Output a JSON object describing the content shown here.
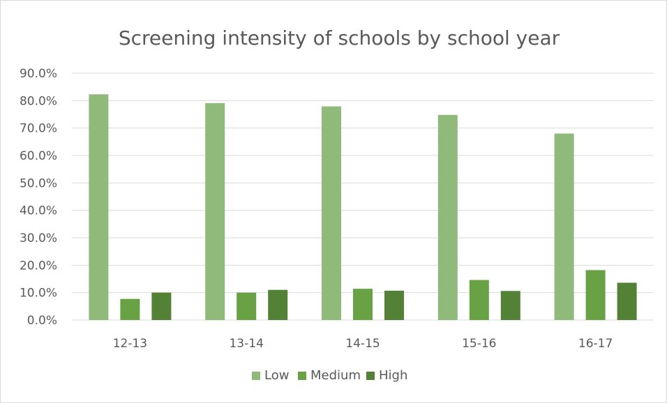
{
  "chart_data": {
    "type": "bar",
    "title": "Screening intensity of schools by school year",
    "xlabel": "",
    "ylabel": "",
    "categories": [
      "12-13",
      "13-14",
      "14-15",
      "15-16",
      "16-17"
    ],
    "series": [
      {
        "name": "Low",
        "color": "#8fba7a",
        "values": [
          82.3,
          79.1,
          77.9,
          74.8,
          68.0
        ]
      },
      {
        "name": "Medium",
        "color": "#69a244",
        "values": [
          7.7,
          10.0,
          11.4,
          14.6,
          18.2
        ]
      },
      {
        "name": "High",
        "color": "#538135",
        "values": [
          10.0,
          11.0,
          10.7,
          10.6,
          13.6
        ]
      }
    ],
    "ylim": [
      0,
      90
    ],
    "y_ticks": [
      0,
      10,
      20,
      30,
      40,
      50,
      60,
      70,
      80,
      90
    ],
    "y_tick_labels": [
      "0.0%",
      "10.0%",
      "20.0%",
      "30.0%",
      "40.0%",
      "50.0%",
      "60.0%",
      "70.0%",
      "80.0%",
      "90.0%"
    ],
    "grid": "horizontal",
    "legend_position": "bottom"
  },
  "colors": {
    "gridline": "#d9d9d9",
    "text": "#595959"
  }
}
